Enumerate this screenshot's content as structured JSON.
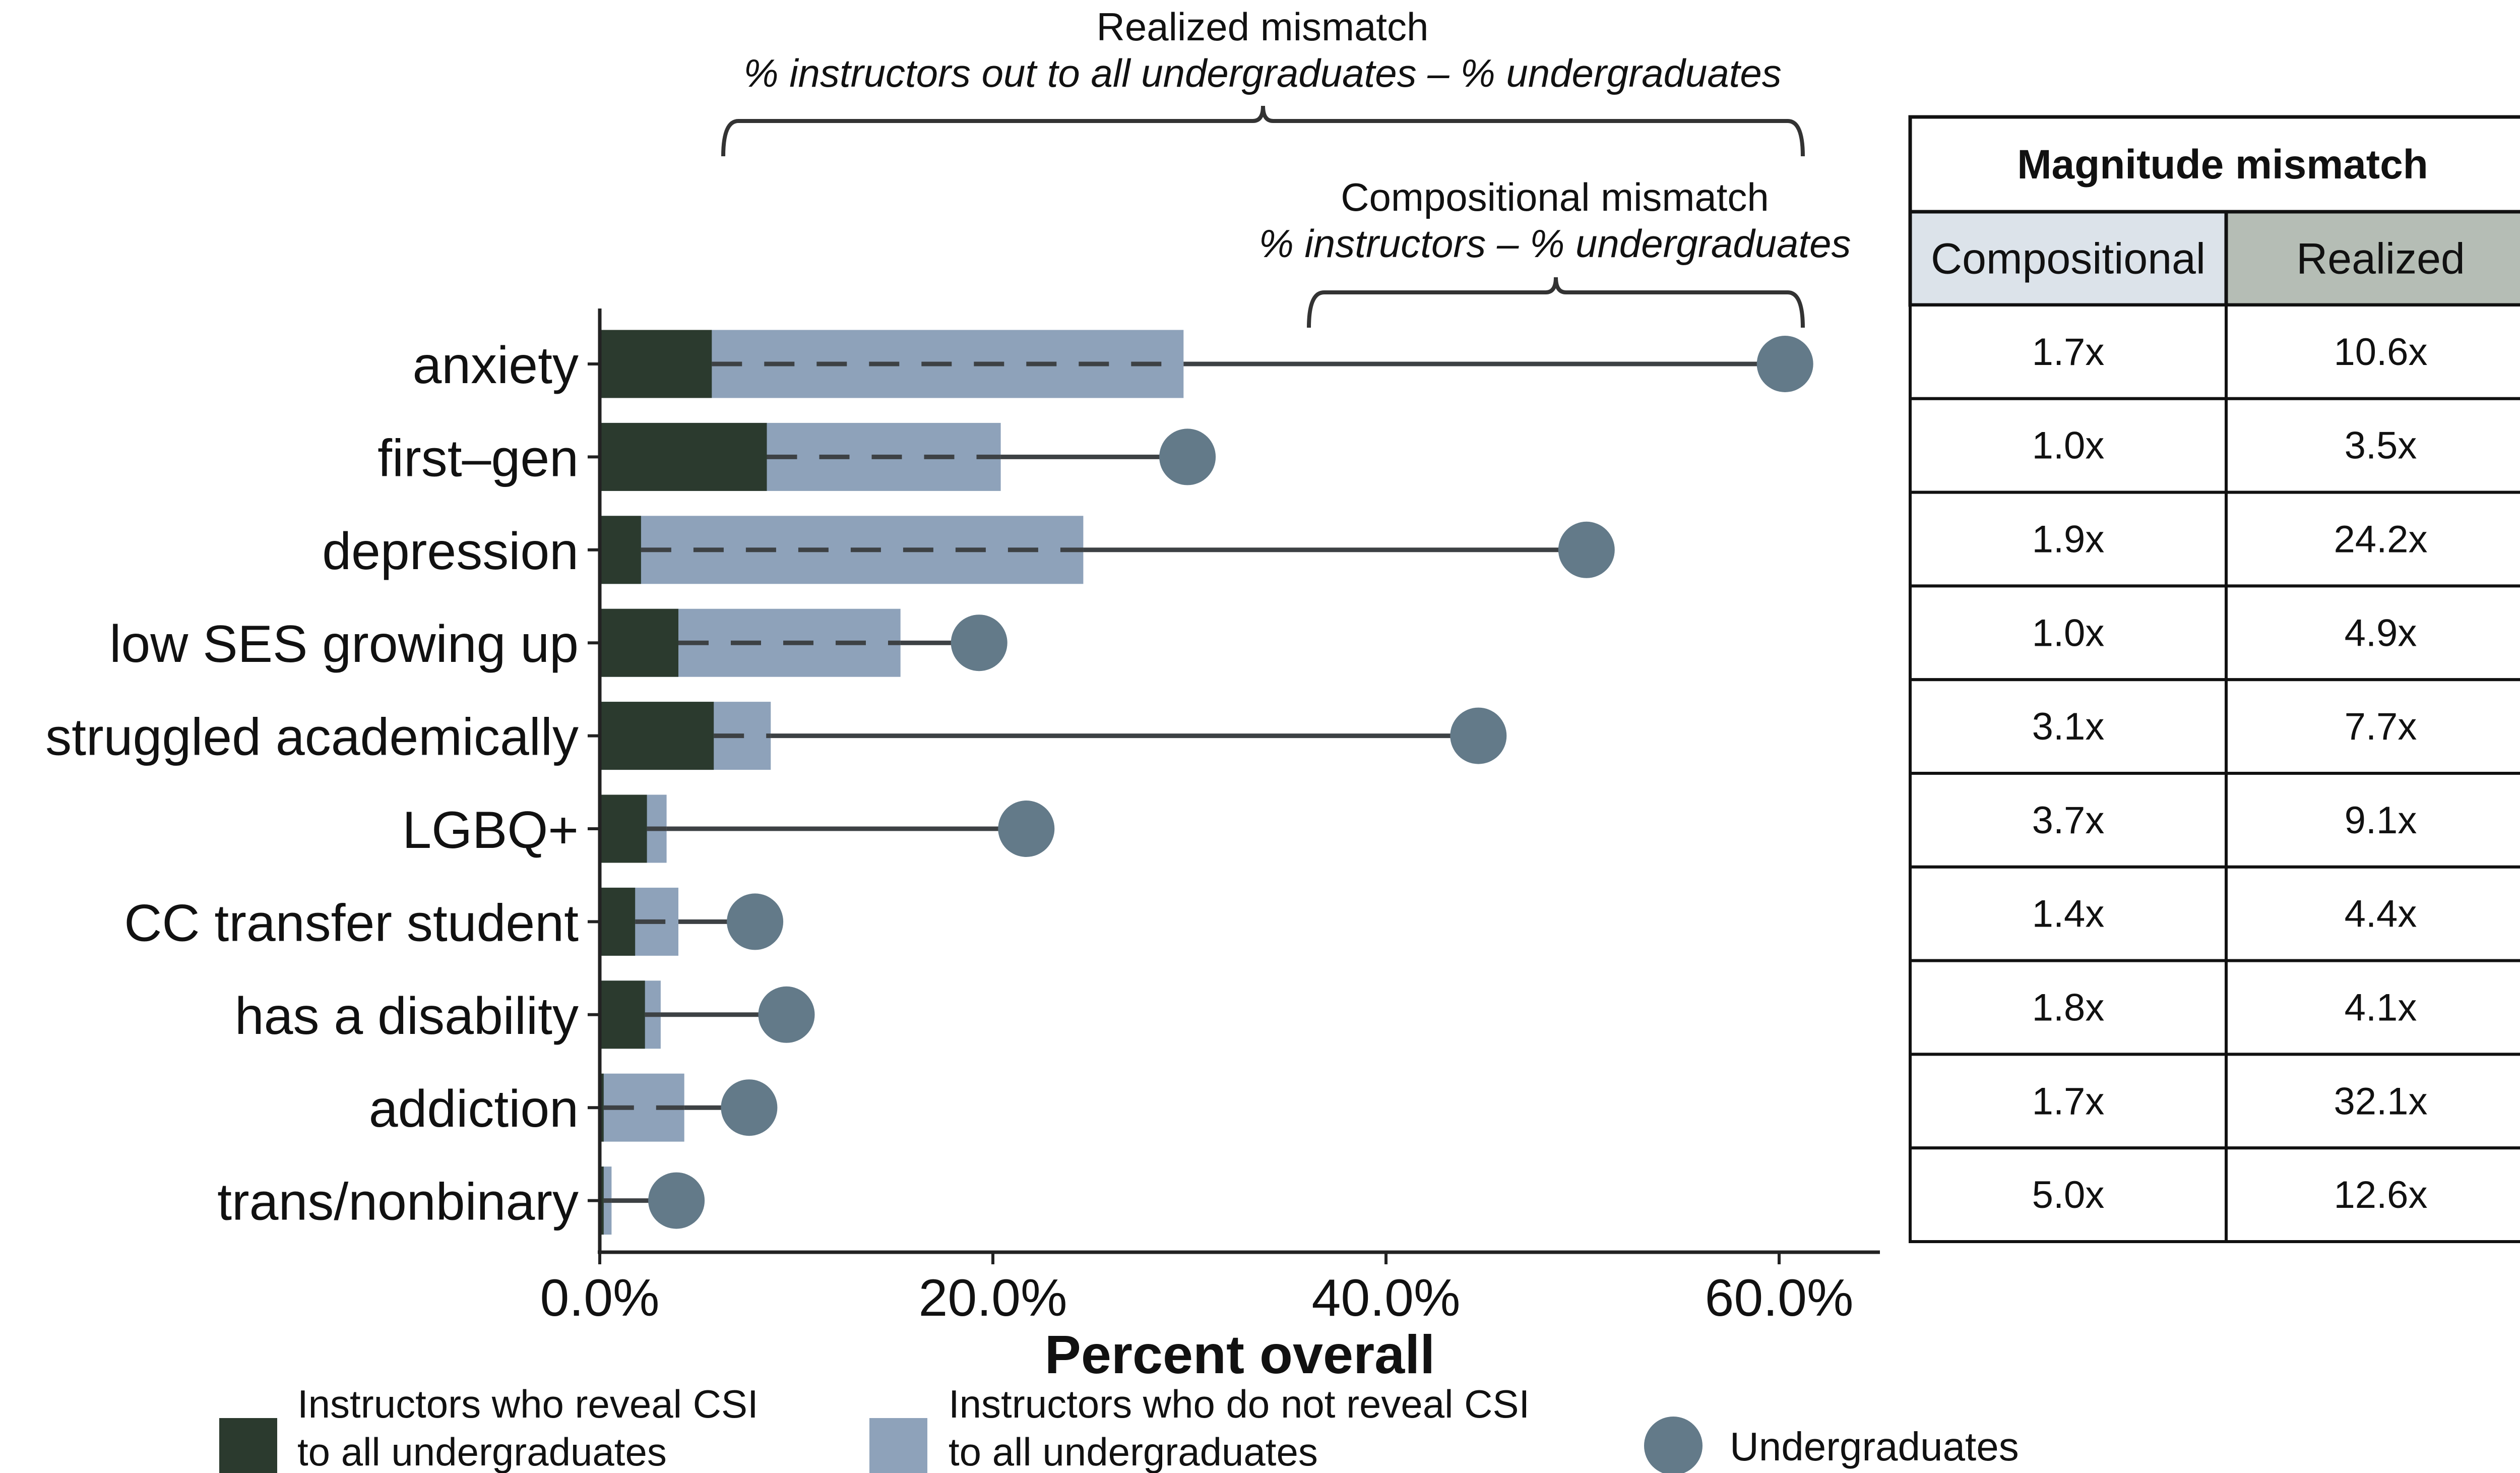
{
  "chart_data": {
    "type": "bar",
    "orientation": "horizontal",
    "xlabel": "Percent overall",
    "xlim": [
      0,
      65
    ],
    "x_ticks": [
      0,
      20,
      40,
      60
    ],
    "x_tick_labels": [
      "0.0%",
      "20.0%",
      "40.0%",
      "60.0%"
    ],
    "categories": [
      "anxiety",
      "first–gen",
      "depression",
      "low SES growing up",
      "struggled academically",
      "LGBQ+",
      "CC transfer student",
      "has a disability",
      "addiction",
      "trans/nonbinary"
    ],
    "series": [
      {
        "name": "Instructors who reveal CSI to all undergraduates",
        "legend_lines": [
          "Instructors who reveal CSI",
          "to all undergraduates"
        ],
        "color": "#2b3a2e",
        "values": [
          5.7,
          8.5,
          2.1,
          4.0,
          5.8,
          2.4,
          1.8,
          2.3,
          0.2,
          0.2
        ]
      },
      {
        "name": "Instructors who do not reveal CSI to all undergraduates",
        "legend_lines": [
          "Instructors who do not reveal CSI",
          "to all undergraduates"
        ],
        "color": "#8ea2ba",
        "values": [
          29.7,
          20.4,
          24.6,
          15.3,
          8.7,
          3.4,
          4.0,
          3.1,
          4.3,
          0.6
        ]
      },
      {
        "name": "Undergraduates",
        "legend_lines": [
          "Undergraduates"
        ],
        "color": "#637a89",
        "values": [
          60.3,
          29.9,
          50.2,
          19.3,
          44.7,
          21.7,
          7.9,
          9.5,
          7.6,
          3.9
        ]
      }
    ],
    "annotations": {
      "realized": {
        "title": "Realized mismatch",
        "subtitle": "% instructors out to all undergraduates – % undergraduates"
      },
      "compositional": {
        "title": "Compositional mismatch",
        "subtitle": "% instructors – % undergraduates"
      }
    },
    "table": {
      "title": "Magnitude mismatch",
      "columns": [
        "Compositional",
        "Realized"
      ],
      "header_colors": [
        "#dce3ea",
        "#b5bdb5"
      ],
      "rows": [
        [
          "1.7x",
          "10.6x"
        ],
        [
          "1.0x",
          "3.5x"
        ],
        [
          "1.9x",
          "24.2x"
        ],
        [
          "1.0x",
          "4.9x"
        ],
        [
          "3.1x",
          "7.7x"
        ],
        [
          "3.7x",
          "9.1x"
        ],
        [
          "1.4x",
          "4.4x"
        ],
        [
          "1.8x",
          "4.1x"
        ],
        [
          "1.7x",
          "32.1x"
        ],
        [
          "5.0x",
          "12.6x"
        ]
      ]
    },
    "grid": false,
    "legend_position": "bottom"
  }
}
